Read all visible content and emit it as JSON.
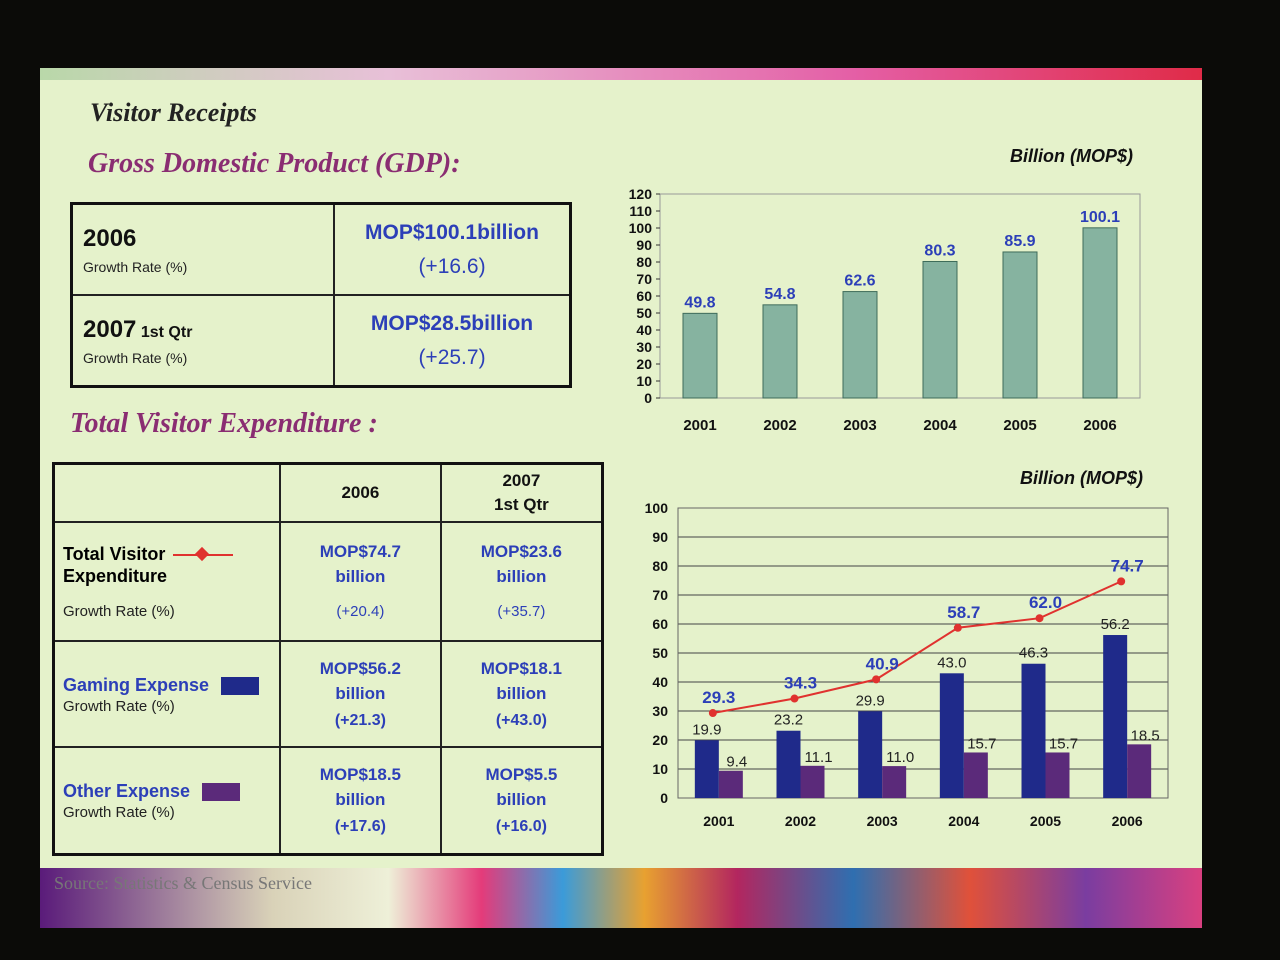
{
  "slide": {
    "title": "Visitor Receipts",
    "gdp_heading": "Gross Domestic Product (GDP):",
    "exp_heading": "Total Visitor Expenditure :",
    "source": "Source: Statistics & Census Service"
  },
  "gdp_table": {
    "rows": [
      {
        "year": "2006",
        "qualifier": "",
        "growth_label": "Growth Rate (%)",
        "value": "MOP$100.1billion",
        "growth": "(+16.6)"
      },
      {
        "year": "2007",
        "qualifier": "1st Qtr",
        "growth_label": "Growth Rate (%)",
        "value": "MOP$28.5billion",
        "growth": "(+25.7)"
      }
    ]
  },
  "exp_table": {
    "col_headers": [
      "2006",
      "2007",
      "1st Qtr"
    ],
    "rows": [
      {
        "name1": "Total Visitor",
        "name2": "Expenditure",
        "growth_label": "Growth Rate (%)",
        "marker_color": "#e0322f",
        "v2006a": "MOP$74.7",
        "v2006b": "billion",
        "g2006": "(+20.4)",
        "v2007a": "MOP$23.6",
        "v2007b": "billion",
        "g2007": "(+35.7)"
      },
      {
        "name1": "Gaming Expense",
        "name2": "",
        "growth_label": "Growth Rate (%)",
        "marker_color": "#1f2a8a",
        "v2006a": "MOP$56.2",
        "v2006b": "billion",
        "g2006": "(+21.3)",
        "v2007a": "MOP$18.1",
        "v2007b": "billion",
        "g2007": "(+43.0)"
      },
      {
        "name1": "Other Expense",
        "name2": "",
        "growth_label": "Growth Rate (%)",
        "marker_color": "#5b2a7a",
        "v2006a": "MOP$18.5",
        "v2006b": "billion",
        "g2006": "(+17.6)",
        "v2007a": "MOP$5.5",
        "v2007b": "billion",
        "g2007": "(+16.0)"
      }
    ]
  },
  "chart_data": [
    {
      "type": "bar",
      "ylabel": "Billion (MOP$)",
      "categories": [
        "2001",
        "2002",
        "2003",
        "2004",
        "2005",
        "2006"
      ],
      "values": [
        49.8,
        54.8,
        62.6,
        80.3,
        85.9,
        100.1
      ],
      "value_labels": [
        "49.8",
        "54.8",
        "62.6",
        "80.3",
        "85.9",
        "100.1"
      ],
      "ylim": [
        0,
        120
      ],
      "yticks": [
        "0",
        "10",
        "20",
        "30",
        "40",
        "50",
        "60",
        "70",
        "80",
        "90",
        "100",
        "110",
        "120"
      ],
      "grid": false,
      "bar_color": "#86b3a0"
    },
    {
      "type": "bar",
      "ylabel": "Billion (MOP$)",
      "categories": [
        "2001",
        "2002",
        "2003",
        "2004",
        "2005",
        "2006"
      ],
      "ylim": [
        0,
        100
      ],
      "yticks": [
        "0",
        "10",
        "20",
        "30",
        "40",
        "50",
        "60",
        "70",
        "80",
        "90",
        "100"
      ],
      "grid": true,
      "series": [
        {
          "kind": "bar",
          "color": "#1f2a8a",
          "values": [
            19.9,
            23.2,
            29.9,
            43.0,
            46.3,
            56.2
          ],
          "labels": [
            "19.9",
            "23.2",
            "29.9",
            "43.0",
            "46.3",
            "56.2"
          ]
        },
        {
          "kind": "bar",
          "color": "#5b2a7a",
          "values": [
            9.4,
            11.1,
            11.0,
            15.7,
            15.7,
            18.5
          ],
          "labels": [
            "9.4",
            "11.1",
            "11.0",
            "15.7",
            "15.7",
            "18.5"
          ]
        },
        {
          "kind": "line",
          "color": "#e0322f",
          "values": [
            29.3,
            34.3,
            40.9,
            58.7,
            62.0,
            74.7
          ],
          "labels": [
            "29.3",
            "34.3",
            "40.9",
            "58.7",
            "62.0",
            "74.7"
          ]
        }
      ]
    }
  ]
}
